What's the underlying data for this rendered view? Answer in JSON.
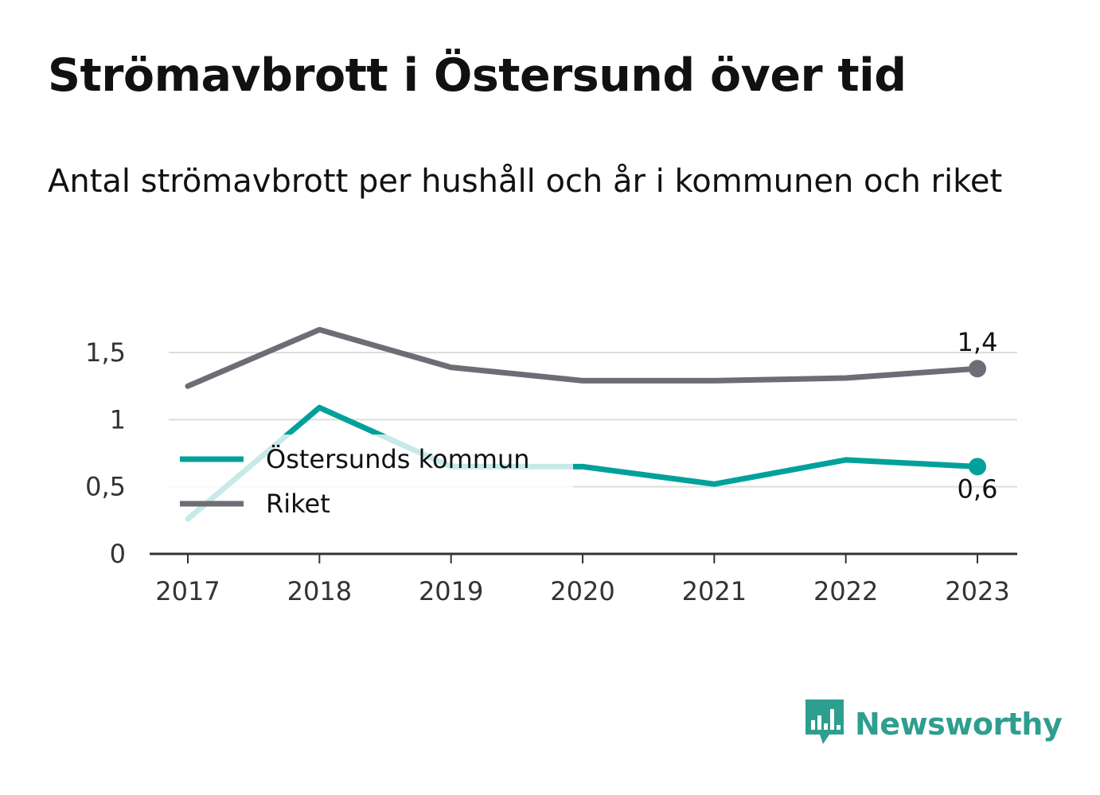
{
  "title": "Strömavbrott i Östersund över tid",
  "subtitle": "Antal strömavbrott per hushåll och år i kommunen och riket",
  "brand": {
    "name": "Newsworthy",
    "color": "#2e9e8f",
    "icon": "bar-chart-speech-bubble-icon"
  },
  "colors": {
    "kommun": "#00a19a",
    "riket": "#6e6d75",
    "grid": "#dddddd",
    "axis": "#333333"
  },
  "chart_data": {
    "type": "line",
    "x": [
      "2017",
      "2018",
      "2019",
      "2020",
      "2021",
      "2022",
      "2023"
    ],
    "y_ticks": [
      0,
      0.5,
      1,
      1.5
    ],
    "y_tick_labels": [
      "0",
      "0,5",
      "1",
      "1,5"
    ],
    "ylim": [
      0,
      1.8
    ],
    "grid": true,
    "legend_position": "middle-left",
    "series": [
      {
        "name": "Östersunds kommun",
        "color": "#00a19a",
        "values": [
          0.26,
          1.09,
          0.65,
          0.65,
          0.52,
          0.7,
          0.65
        ],
        "end_label": "0,6"
      },
      {
        "name": "Riket",
        "color": "#6e6d75",
        "values": [
          1.25,
          1.67,
          1.39,
          1.29,
          1.29,
          1.31,
          1.38
        ],
        "end_label": "1,4"
      }
    ]
  }
}
